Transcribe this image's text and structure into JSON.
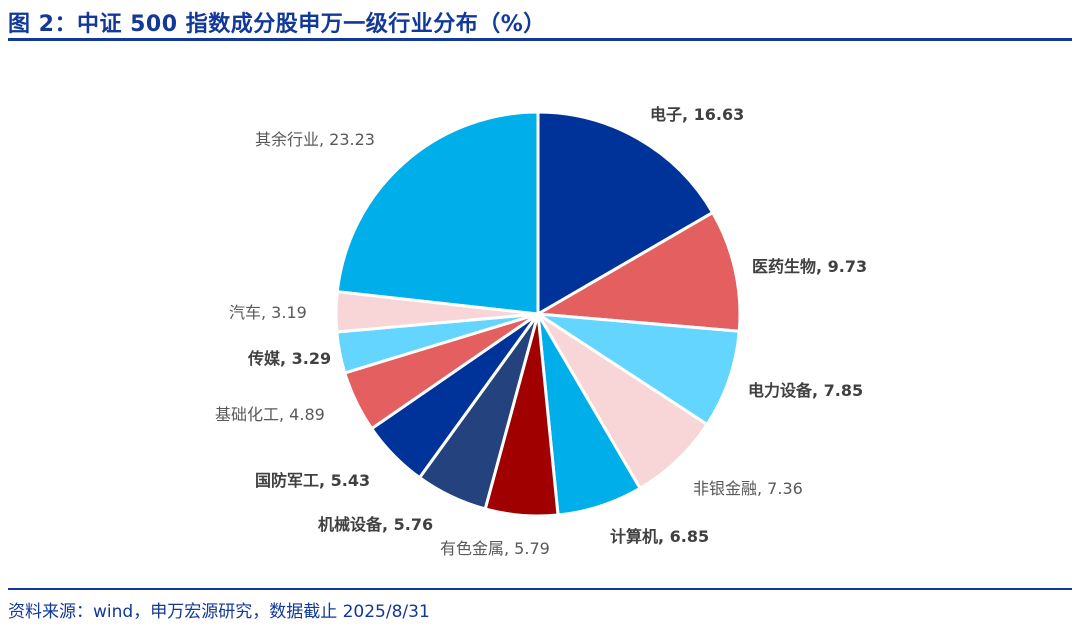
{
  "title": "图 2：中证 500 指数成分股申万一级行业分布（%）",
  "source": "资料来源：wind，申万宏源研究，数据截止 2025/8/31",
  "chart_data": {
    "type": "pie",
    "title": "图 2：中证 500 指数成分股申万一级行业分布（%）",
    "start": "top",
    "direction": "clockwise",
    "slices": [
      {
        "label": "电子",
        "value": 16.63,
        "color": "#00339a",
        "bold": true
      },
      {
        "label": "医药生物",
        "value": 9.73,
        "color": "#e35f60",
        "bold": true
      },
      {
        "label": "电力设备",
        "value": 7.85,
        "color": "#63d5ff",
        "bold": true
      },
      {
        "label": "非银金融",
        "value": 7.36,
        "color": "#f8d5d7",
        "bold": false
      },
      {
        "label": "计算机",
        "value": 6.85,
        "color": "#00aeea",
        "bold": true
      },
      {
        "label": "有色金属",
        "value": 5.79,
        "color": "#a00000",
        "bold": false
      },
      {
        "label": "机械设备",
        "value": 5.76,
        "color": "#24437e",
        "bold": true
      },
      {
        "label": "国防军工",
        "value": 5.43,
        "color": "#00339a",
        "bold": true
      },
      {
        "label": "基础化工",
        "value": 4.89,
        "color": "#e35f60",
        "bold": false
      },
      {
        "label": "传媒",
        "value": 3.29,
        "color": "#63d5ff",
        "bold": true
      },
      {
        "label": "汽车",
        "value": 3.19,
        "color": "#f8d5d7",
        "bold": false
      },
      {
        "label": "其余行业",
        "value": 23.23,
        "color": "#00aeea",
        "bold": false
      }
    ]
  }
}
